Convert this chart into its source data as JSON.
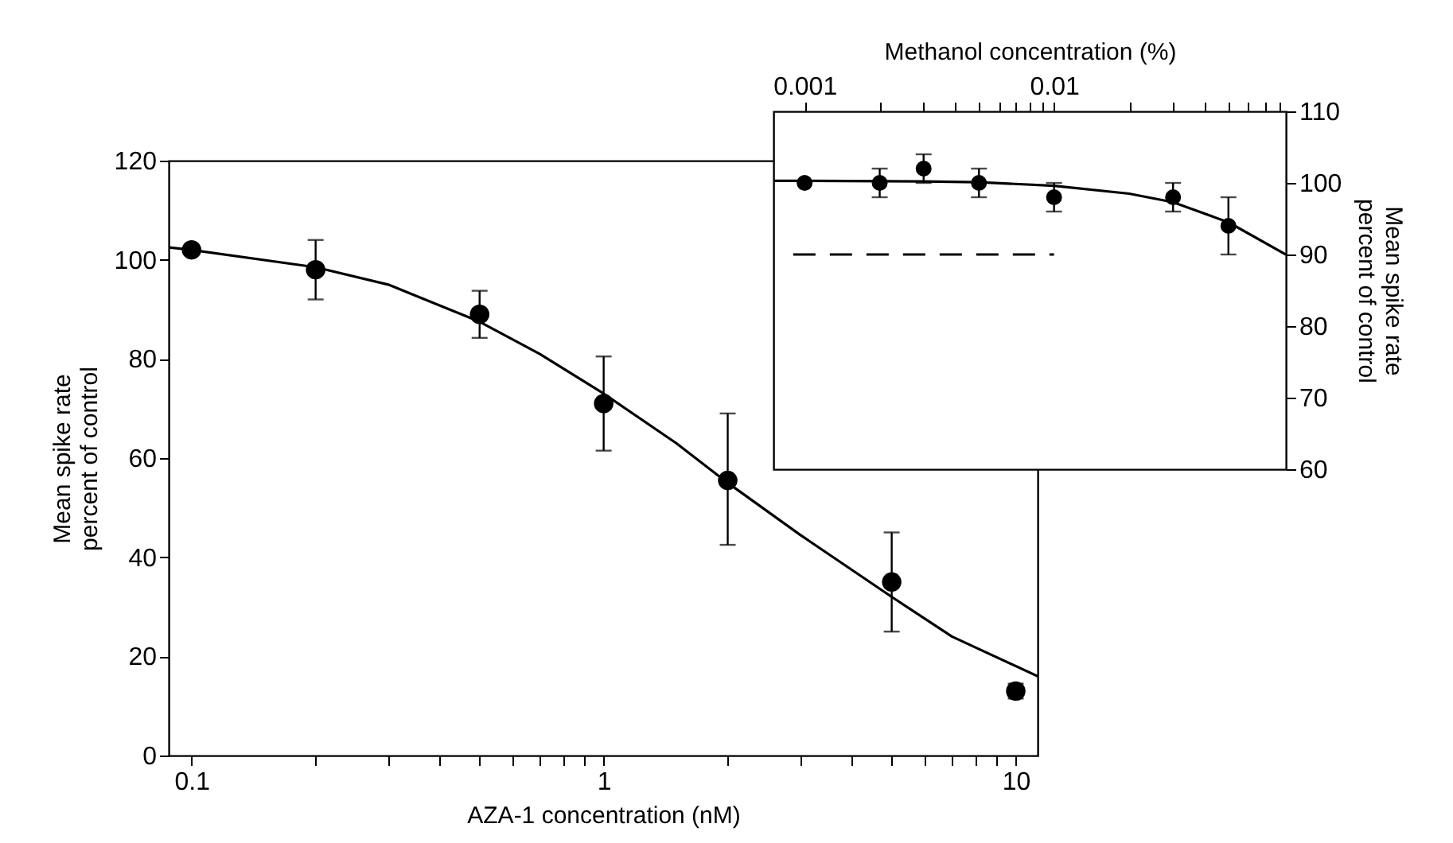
{
  "chart_data": [
    {
      "type": "scatter",
      "xlabel": "AZA-1 concentration (nM)",
      "ylabel": "Mean spike rate\npercent of control",
      "log": "x",
      "grid": false,
      "legend": false,
      "xlim": [
        0.088,
        11.3
      ],
      "xticks": [
        0.1,
        {
          "value": 0.2,
          "label": null
        },
        {
          "value": 0.3,
          "label": null
        },
        {
          "value": 0.4,
          "label": null
        },
        {
          "value": 0.5,
          "label": null
        },
        {
          "value": 0.6,
          "label": null
        },
        {
          "value": 0.7,
          "label": null
        },
        {
          "value": 0.8,
          "label": null
        },
        {
          "value": 0.9,
          "label": null
        },
        1,
        {
          "value": 2,
          "label": null
        },
        {
          "value": 3,
          "label": null
        },
        {
          "value": 4,
          "label": null
        },
        {
          "value": 5,
          "label": null
        },
        {
          "value": 6,
          "label": null
        },
        {
          "value": 7,
          "label": null
        },
        {
          "value": 8,
          "label": null
        },
        {
          "value": 9,
          "label": null
        },
        10
      ],
      "ylim": [
        0,
        120
      ],
      "yticks": [
        0,
        20,
        40,
        60,
        80,
        100,
        120
      ],
      "series": [
        {
          "type": "line",
          "color": "#000000",
          "line_style": "solid",
          "marker": "none",
          "x": [
            0.088,
            0.1,
            0.2,
            0.3,
            0.5,
            0.7,
            1,
            1.5,
            2,
            3,
            5,
            7,
            11.3
          ],
          "values": [
            102.5,
            102,
            98.5,
            95,
            87.5,
            81,
            73,
            63,
            55,
            44.5,
            32,
            24,
            16
          ]
        },
        {
          "color": "#000000",
          "marker": "circle",
          "x": [
            0.1,
            0.2,
            0.5,
            1,
            2,
            5,
            10
          ],
          "values": [
            102,
            98,
            89,
            71,
            55.5,
            35,
            13
          ],
          "errors": [
            null,
            6,
            4.75,
            9.5,
            [
              42.5,
              69
            ],
            10,
            1.5
          ]
        }
      ]
    },
    {
      "type": "scatter",
      "xlabel": "Methanol concentration (%)",
      "ylabel": "Mean spike rate\npercent of control",
      "log": "x",
      "grid": false,
      "legend": false,
      "xlim": [
        0.00075,
        0.085
      ],
      "xticks": [
        0.001,
        {
          "value": 0.002,
          "label": null
        },
        {
          "value": 0.003,
          "label": null
        },
        {
          "value": 0.004,
          "label": null
        },
        {
          "value": 0.005,
          "label": null
        },
        {
          "value": 0.006,
          "label": null
        },
        {
          "value": 0.007,
          "label": null
        },
        {
          "value": 0.008,
          "label": null
        },
        {
          "value": 0.009,
          "label": null
        },
        0.01,
        {
          "value": 0.02,
          "label": null
        },
        {
          "value": 0.03,
          "label": null
        },
        {
          "value": 0.04,
          "label": null
        },
        {
          "value": 0.05,
          "label": null
        },
        {
          "value": 0.06,
          "label": null
        },
        {
          "value": 0.07,
          "label": null
        },
        {
          "value": 0.08,
          "label": null
        }
      ],
      "ylim": [
        60,
        110
      ],
      "yticks": [
        60,
        70,
        80,
        90,
        100,
        110
      ],
      "series": [
        {
          "type": "line",
          "color": "#000000",
          "line_style": "solid",
          "marker": "none",
          "x": [
            0.00075,
            0.001,
            0.003,
            0.005,
            0.01,
            0.02,
            0.03,
            0.05,
            0.085
          ],
          "values": [
            100.3,
            100.3,
            100.2,
            100.1,
            99.6,
            98.5,
            97.3,
            94.5,
            90
          ]
        },
        {
          "type": "line",
          "color": "#000000",
          "line_style": "dashed",
          "marker": "none",
          "x": [
            0.0009,
            0.01
          ],
          "values": [
            90,
            90
          ]
        },
        {
          "color": "#000000",
          "marker": "circle",
          "x": [
            0.001,
            0.002,
            0.003,
            0.005,
            0.01,
            0.03,
            0.05
          ],
          "values": [
            100,
            100,
            102,
            100,
            98,
            98,
            94
          ],
          "errors": [
            null,
            2,
            2,
            2,
            2,
            2,
            4
          ]
        }
      ]
    }
  ]
}
